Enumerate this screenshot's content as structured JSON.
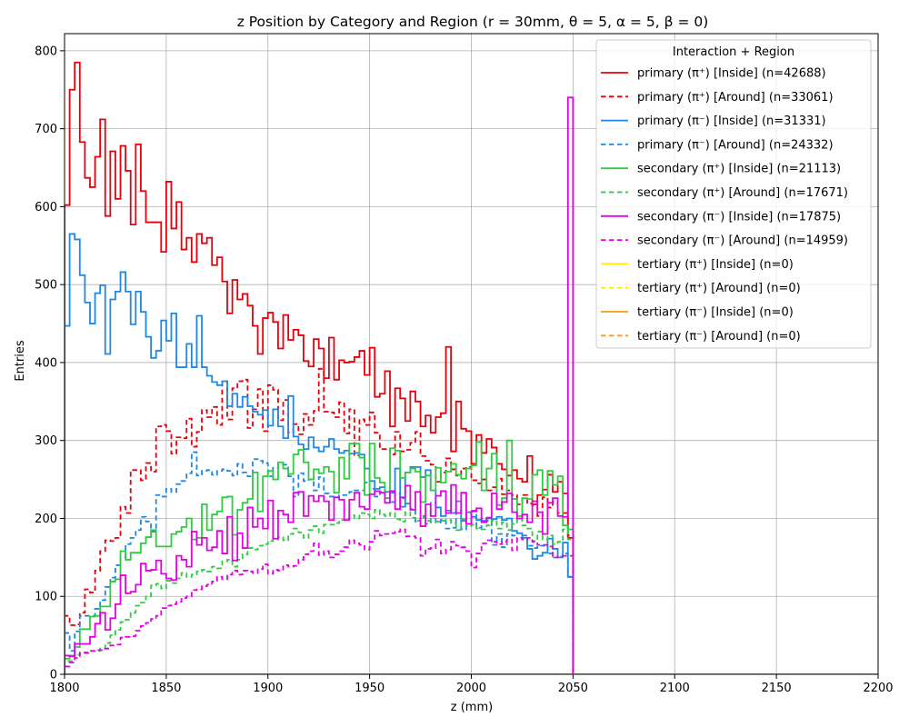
{
  "chart_data": {
    "type": "line",
    "title": "z Position by Category and Region (r = 30mm, θ = 5, α = 5, β = 0)",
    "xlabel": "z (mm)",
    "ylabel": "Entries",
    "xlim": [
      1800,
      2200
    ],
    "ylim": [
      0,
      822
    ],
    "xticks": [
      1800,
      1850,
      1900,
      1950,
      2000,
      2050,
      2100,
      2150,
      2200
    ],
    "yticks": [
      0,
      100,
      200,
      300,
      400,
      500,
      600,
      700,
      800
    ],
    "grid": true,
    "legend_title": "Interaction + Region",
    "legend_position": "top-right",
    "bin_width": 2.5,
    "series": [
      {
        "name": "primary (π⁺) [Inside] (n=42688)",
        "color": "#e8000b",
        "dash": "solid",
        "values": [
          602,
          750,
          785,
          683,
          637,
          625,
          664,
          712,
          588,
          671,
          610,
          678,
          646,
          577,
          680,
          620,
          580,
          580,
          580,
          542,
          632,
          572,
          606,
          545,
          560,
          529,
          565,
          553,
          560,
          525,
          535,
          504,
          463,
          506,
          481,
          488,
          473,
          447,
          411,
          457,
          464,
          452,
          418,
          461,
          429,
          442,
          435,
          402,
          395,
          430,
          418,
          380,
          432,
          378,
          403,
          400,
          401,
          407,
          415,
          384,
          419,
          356,
          360,
          389,
          318,
          367,
          354,
          325,
          363,
          350,
          318,
          332,
          310,
          330,
          335,
          420,
          286,
          350,
          315,
          312,
          270,
          307,
          284,
          302,
          291,
          270,
          263,
          255,
          262,
          251,
          247,
          280,
          218,
          230,
          237,
          256,
          234,
          247,
          232,
          175
        ]
      },
      {
        "name": "primary (π⁺) [Around] (n=33061)",
        "color": "#e8000b",
        "dash": "dashed",
        "values": [
          75,
          63,
          64,
          79,
          109,
          105,
          133,
          158,
          172,
          171,
          175,
          215,
          207,
          262,
          262,
          249,
          271,
          260,
          318,
          320,
          312,
          283,
          304,
          303,
          328,
          292,
          311,
          339,
          330,
          343,
          320,
          376,
          327,
          367,
          376,
          378,
          316,
          340,
          366,
          312,
          371,
          365,
          326,
          352,
          310,
          321,
          308,
          334,
          320,
          338,
          392,
          337,
          336,
          330,
          349,
          309,
          340,
          281,
          327,
          320,
          336,
          310,
          289,
          289,
          282,
          311,
          286,
          288,
          297,
          311,
          280,
          274,
          269,
          247,
          259,
          277,
          263,
          255,
          264,
          266,
          249,
          245,
          250,
          236,
          240,
          251,
          231,
          236,
          230,
          218,
          230,
          219,
          217,
          203,
          227,
          214,
          221,
          207,
          207,
          178
        ]
      },
      {
        "name": "primary (π⁻) [Inside] (n=31331)",
        "color": "#1e88e5",
        "dash": "solid",
        "values": [
          447,
          565,
          558,
          512,
          477,
          450,
          489,
          499,
          411,
          481,
          491,
          516,
          491,
          449,
          491,
          465,
          433,
          406,
          415,
          454,
          428,
          463,
          394,
          394,
          424,
          394,
          460,
          394,
          383,
          375,
          371,
          376,
          344,
          360,
          343,
          356,
          344,
          337,
          333,
          339,
          319,
          340,
          318,
          303,
          357,
          305,
          295,
          289,
          304,
          291,
          286,
          292,
          302,
          289,
          284,
          287,
          283,
          284,
          282,
          264,
          248,
          238,
          240,
          226,
          233,
          264,
          215,
          259,
          266,
          266,
          253,
          262,
          236,
          214,
          203,
          210,
          207,
          222,
          197,
          208,
          202,
          198,
          197,
          200,
          199,
          202,
          198,
          200,
          184,
          181,
          175,
          161,
          148,
          152,
          156,
          174,
          161,
          150,
          169,
          125
        ]
      },
      {
        "name": "primary (π⁻) [Around] (n=24332)",
        "color": "#1e88e5",
        "dash": "dashed",
        "values": [
          53,
          30,
          55,
          75,
          75,
          75,
          84,
          95,
          112,
          124,
          140,
          150,
          167,
          175,
          185,
          202,
          196,
          183,
          230,
          228,
          238,
          234,
          244,
          248,
          258,
          285,
          255,
          261,
          262,
          256,
          261,
          263,
          261,
          255,
          270,
          259,
          254,
          276,
          274,
          271,
          254,
          265,
          269,
          269,
          254,
          228,
          258,
          248,
          250,
          236,
          253,
          232,
          228,
          227,
          230,
          230,
          234,
          236,
          236,
          246,
          238,
          228,
          234,
          234,
          221,
          232,
          226,
          219,
          212,
          196,
          203,
          193,
          220,
          195,
          198,
          187,
          188,
          210,
          186,
          190,
          210,
          188,
          200,
          197,
          166,
          180,
          163,
          180,
          178,
          181,
          178,
          165,
          162,
          165,
          165,
          155,
          150,
          151,
          155,
          125
        ]
      },
      {
        "name": "secondary (π⁺) [Inside] (n=21113)",
        "color": "#2ecc40",
        "dash": "solid",
        "values": [
          20,
          24,
          35,
          58,
          58,
          74,
          75,
          87,
          87,
          119,
          122,
          158,
          147,
          156,
          156,
          168,
          176,
          185,
          164,
          164,
          164,
          180,
          183,
          189,
          200,
          173,
          175,
          218,
          185,
          205,
          209,
          227,
          228,
          179,
          211,
          220,
          225,
          259,
          209,
          254,
          261,
          250,
          272,
          264,
          257,
          282,
          288,
          272,
          250,
          263,
          258,
          266,
          260,
          233,
          278,
          251,
          296,
          296,
          278,
          230,
          296,
          252,
          246,
          226,
          290,
          287,
          252,
          259,
          264,
          260,
          221,
          255,
          236,
          265,
          246,
          260,
          270,
          256,
          251,
          264,
          268,
          298,
          236,
          264,
          283,
          217,
          226,
          300,
          225,
          203,
          226,
          225,
          256,
          262,
          230,
          261,
          243,
          254,
          191,
          186
        ]
      },
      {
        "name": "secondary (π⁺) [Around] (n=17671)",
        "color": "#2ecc40",
        "dash": "dashed",
        "values": [
          17,
          17,
          25,
          27,
          27,
          30,
          30,
          33,
          40,
          50,
          57,
          67,
          70,
          79,
          88,
          92,
          100,
          114,
          116,
          110,
          120,
          117,
          123,
          130,
          125,
          128,
          132,
          134,
          132,
          138,
          136,
          145,
          147,
          138,
          147,
          154,
          162,
          160,
          165,
          167,
          171,
          173,
          176,
          172,
          180,
          187,
          182,
          175,
          185,
          190,
          181,
          192,
          192,
          194,
          198,
          200,
          204,
          200,
          207,
          205,
          200,
          211,
          205,
          203,
          207,
          199,
          196,
          208,
          201,
          197,
          201,
          197,
          196,
          196,
          197,
          198,
          194,
          185,
          199,
          190,
          192,
          187,
          186,
          191,
          197,
          187,
          195,
          185,
          193,
          200,
          191,
          187,
          171,
          183,
          173,
          178,
          167,
          170,
          186,
          173
        ]
      },
      {
        "name": "secondary (π⁻) [Inside] (n=17875)",
        "color": "#e600e6",
        "dash": "solid",
        "values": [
          24,
          23,
          39,
          39,
          39,
          48,
          65,
          79,
          57,
          72,
          90,
          127,
          104,
          106,
          115,
          142,
          133,
          134,
          146,
          129,
          123,
          121,
          152,
          147,
          138,
          183,
          166,
          175,
          159,
          163,
          184,
          155,
          202,
          146,
          181,
          162,
          214,
          189,
          200,
          187,
          223,
          174,
          210,
          205,
          195,
          233,
          234,
          203,
          229,
          222,
          229,
          222,
          198,
          227,
          224,
          198,
          224,
          233,
          215,
          212,
          231,
          235,
          233,
          220,
          235,
          212,
          227,
          242,
          211,
          234,
          190,
          218,
          203,
          229,
          235,
          207,
          243,
          207,
          233,
          193,
          209,
          213,
          195,
          201,
          232,
          212,
          221,
          232,
          208,
          200,
          205,
          195,
          222,
          208,
          180,
          220,
          226,
          203,
          202,
          740
        ]
      },
      {
        "name": "secondary (π⁻) [Around] (n=14959)",
        "color": "#e600e6",
        "dash": "dashed",
        "values": [
          10,
          15,
          21,
          28,
          28,
          30,
          31,
          31,
          33,
          37,
          38,
          47,
          48,
          49,
          56,
          62,
          66,
          71,
          75,
          85,
          88,
          90,
          93,
          98,
          100,
          108,
          109,
          113,
          115,
          119,
          125,
          122,
          128,
          133,
          128,
          133,
          132,
          130,
          135,
          141,
          129,
          134,
          133,
          140,
          138,
          139,
          147,
          154,
          158,
          168,
          153,
          158,
          150,
          154,
          158,
          163,
          172,
          168,
          166,
          160,
          170,
          184,
          178,
          180,
          181,
          183,
          186,
          177,
          177,
          175,
          152,
          161,
          162,
          173,
          155,
          160,
          170,
          165,
          163,
          158,
          137,
          155,
          168,
          172,
          170,
          167,
          170,
          173,
          159,
          175,
          173,
          175,
          170,
          166,
          166,
          164,
          150,
          152,
          152,
          152
        ]
      },
      {
        "name": "tertiary (π⁺) [Inside] (n=0)",
        "color": "#ffea00",
        "dash": "solid",
        "values": []
      },
      {
        "name": "tertiary (π⁺) [Around] (n=0)",
        "color": "#ffea00",
        "dash": "dashed",
        "values": []
      },
      {
        "name": "tertiary (π⁻) [Inside] (n=0)",
        "color": "#f59e0b",
        "dash": "solid",
        "values": []
      },
      {
        "name": "tertiary (π⁻) [Around] (n=0)",
        "color": "#f59e0b",
        "dash": "dashed",
        "values": []
      }
    ]
  }
}
